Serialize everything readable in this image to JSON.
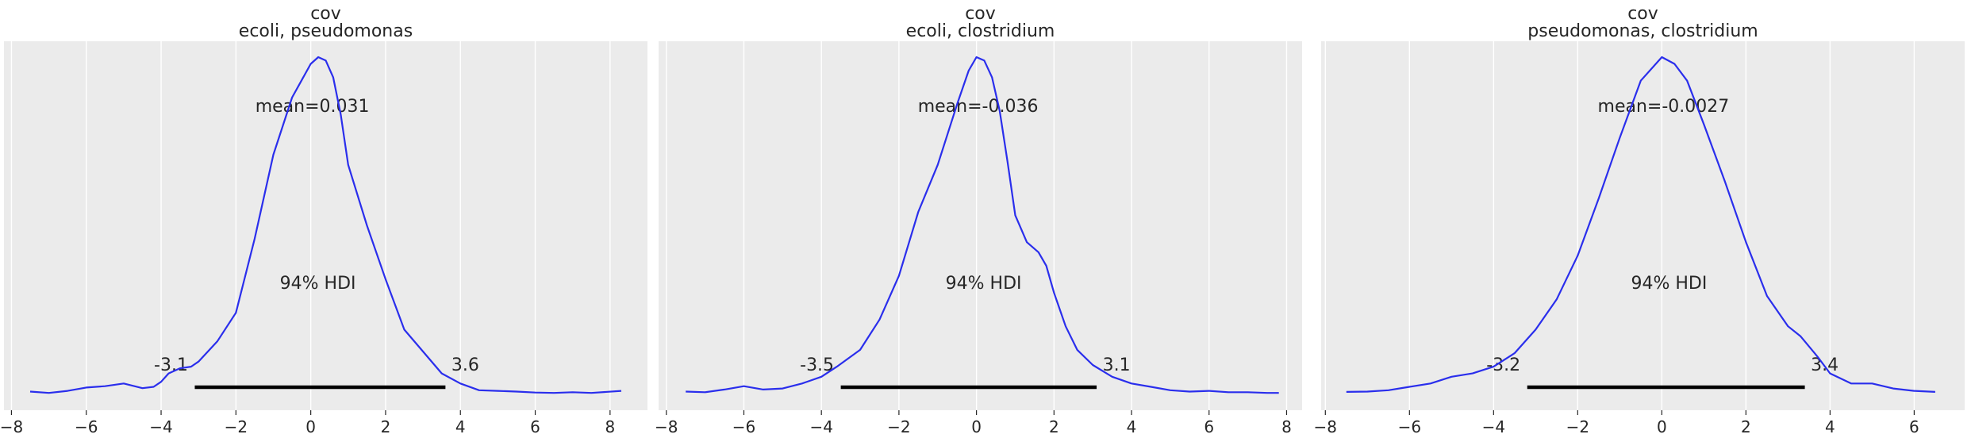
{
  "chart_data": [
    {
      "type": "line",
      "title": "cov\necoli, pseudomonas",
      "title_lines": [
        "cov",
        "ecoli, pseudomonas"
      ],
      "xlim": [
        -8.2,
        9.0
      ],
      "ticks": [
        -8,
        -6,
        -4,
        -2,
        0,
        2,
        4,
        6,
        8
      ],
      "tick_labels": [
        "−8",
        "−6",
        "−4",
        "−2",
        "0",
        "2",
        "4",
        "6",
        "8"
      ],
      "grid": true,
      "mean_label": "mean=0.031",
      "hdi_label": "94% HDI",
      "hdi": [
        -3.1,
        3.6
      ],
      "hdi_low_label": "-3.1",
      "hdi_high_label": "3.6",
      "series": [
        {
          "x": [
            -7.5,
            -7.0,
            -6.5,
            -6.0,
            -5.5,
            -5.0,
            -4.5,
            -4.2,
            -4.0,
            -3.8,
            -3.5,
            -3.2,
            -3.0,
            -2.5,
            -2.0,
            -1.5,
            -1.0,
            -0.5,
            0.0,
            0.2,
            0.4,
            0.6,
            0.8,
            1.0,
            1.5,
            2.0,
            2.5,
            3.0,
            3.5,
            4.0,
            4.5,
            5.0,
            5.5,
            6.0,
            6.5,
            7.0,
            7.5,
            8.3
          ],
          "y": [
            0.006,
            0.002,
            0.008,
            0.018,
            0.022,
            0.03,
            0.016,
            0.02,
            0.035,
            0.06,
            0.075,
            0.08,
            0.095,
            0.155,
            0.24,
            0.46,
            0.71,
            0.88,
            0.98,
            1.0,
            0.99,
            0.94,
            0.83,
            0.68,
            0.5,
            0.34,
            0.19,
            0.125,
            0.06,
            0.03,
            0.01,
            0.008,
            0.006,
            0.003,
            0.002,
            0.004,
            0.002,
            0.008
          ]
        }
      ]
    },
    {
      "type": "line",
      "title": "cov\necoli, clostridium",
      "title_lines": [
        "cov",
        "ecoli, clostridium"
      ],
      "xlim": [
        -8.2,
        8.4
      ],
      "ticks": [
        -8,
        -6,
        -4,
        -2,
        0,
        2,
        4,
        6,
        8
      ],
      "tick_labels": [
        "−8",
        "−6",
        "−4",
        "−2",
        "0",
        "2",
        "4",
        "6",
        "8"
      ],
      "grid": true,
      "mean_label": "mean=-0.036",
      "hdi_label": "94% HDI",
      "hdi": [
        -3.5,
        3.1
      ],
      "hdi_low_label": "-3.5",
      "hdi_high_label": "3.1",
      "series": [
        {
          "x": [
            -7.5,
            -7.0,
            -6.5,
            -6.0,
            -5.5,
            -5.0,
            -4.5,
            -4.0,
            -3.6,
            -3.0,
            -2.5,
            -2.0,
            -1.5,
            -1.0,
            -0.5,
            -0.2,
            0.0,
            0.2,
            0.4,
            0.6,
            0.8,
            1.0,
            1.3,
            1.6,
            1.8,
            2.0,
            2.3,
            2.6,
            3.0,
            3.5,
            4.0,
            4.5,
            5.0,
            5.5,
            6.0,
            6.5,
            7.0,
            7.5,
            7.8
          ],
          "y": [
            0.006,
            0.004,
            0.012,
            0.022,
            0.012,
            0.015,
            0.03,
            0.05,
            0.08,
            0.13,
            0.22,
            0.35,
            0.54,
            0.68,
            0.86,
            0.96,
            1.0,
            0.99,
            0.94,
            0.84,
            0.69,
            0.53,
            0.45,
            0.42,
            0.38,
            0.3,
            0.2,
            0.13,
            0.085,
            0.05,
            0.03,
            0.02,
            0.01,
            0.006,
            0.008,
            0.004,
            0.004,
            0.002,
            0.002
          ]
        }
      ]
    },
    {
      "type": "line",
      "title": "cov\npseudomonas, clostridium",
      "title_lines": [
        "cov",
        "pseudomonas, clostridium"
      ],
      "xlim": [
        -8.1,
        7.2
      ],
      "ticks": [
        -8,
        -6,
        -4,
        -2,
        0,
        2,
        4,
        6
      ],
      "tick_labels": [
        "−8",
        "−6",
        "−4",
        "−2",
        "0",
        "2",
        "4",
        "6"
      ],
      "grid": true,
      "mean_label": "mean=-0.0027",
      "hdi_label": "94% HDI",
      "hdi": [
        -3.2,
        3.4
      ],
      "hdi_low_label": "-3.2",
      "hdi_high_label": "3.4",
      "series": [
        {
          "x": [
            -7.5,
            -7.0,
            -6.5,
            -6.0,
            -5.5,
            -5.0,
            -4.5,
            -4.0,
            -3.5,
            -3.0,
            -2.5,
            -2.0,
            -1.5,
            -1.0,
            -0.5,
            0.0,
            0.3,
            0.6,
            1.0,
            1.5,
            2.0,
            2.5,
            3.0,
            3.3,
            3.7,
            4.0,
            4.5,
            5.0,
            5.5,
            6.0,
            6.5
          ],
          "y": [
            0.005,
            0.006,
            0.01,
            0.02,
            0.03,
            0.05,
            0.06,
            0.08,
            0.12,
            0.19,
            0.28,
            0.41,
            0.58,
            0.76,
            0.93,
            1.0,
            0.98,
            0.93,
            0.8,
            0.63,
            0.45,
            0.29,
            0.2,
            0.17,
            0.11,
            0.06,
            0.03,
            0.03,
            0.015,
            0.008,
            0.005
          ]
        }
      ]
    }
  ]
}
